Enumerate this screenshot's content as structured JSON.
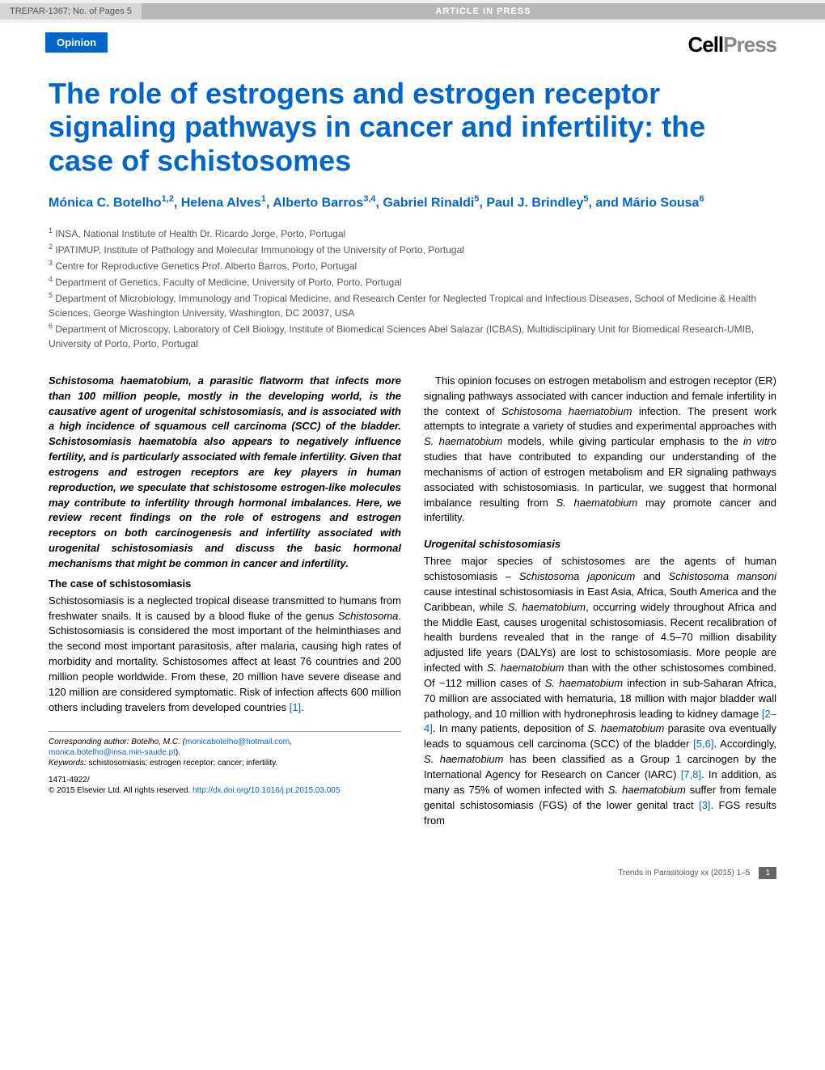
{
  "header": {
    "code": "TREPAR-1367; No. of Pages 5",
    "banner": "ARTICLE IN PRESS",
    "badge": "Opinion",
    "logo_cell": "Cell",
    "logo_press": "Press"
  },
  "title": "The role of estrogens and estrogen receptor signaling pathways in cancer and infertility: the case of schistosomes",
  "authors_html": "Mónica C. Botelho<sup>1,2</sup>, Helena Alves<sup>1</sup>, Alberto Barros<sup>3,4</sup>, Gabriel Rinaldi<sup>5</sup>, Paul J. Brindley<sup>5</sup>, and Mário Sousa<sup>6</sup>",
  "affiliations": [
    "<sup>1</sup> INSA, National Institute of Health Dr. Ricardo Jorge, Porto, Portugal",
    "<sup>2</sup> IPATIMUP, Institute of Pathology and Molecular Immunology of the University of Porto, Portugal",
    "<sup>3</sup> Centre for Reproductive Genetics Prof. Alberto Barros, Porto, Portugal",
    "<sup>4</sup> Department of Genetics, Faculty of Medicine, University of Porto, Porto, Portugal",
    "<sup>5</sup> Department of Microbiology, Immunology and Tropical Medicine, and Research Center for Neglected Tropical and Infectious Diseases, School of Medicine & Health Sciences, George Washington University, Washington, DC 20037, USA",
    "<sup>6</sup> Department of Microscopy, Laboratory of Cell Biology, Institute of Biomedical Sciences Abel Salazar (ICBAS), Multidisciplinary Unit for Biomedical Research-UMIB, University of Porto, Porto, Portugal"
  ],
  "left_col": {
    "abstract": "Schistosoma haematobium, a parasitic flatworm that infects more than 100 million people, mostly in the developing world, is the causative agent of urogenital schistosomiasis, and is associated with a high incidence of squamous cell carcinoma (SCC) of the bladder. Schistosomiasis haematobia also appears to negatively influence fertility, and is particularly associated with female infertility. Given that estrogens and estrogen receptors are key players in human reproduction, we speculate that schistosome estrogen-like molecules may contribute to infertility through hormonal imbalances. Here, we review recent findings on the role of estrogens and estrogen receptors on both carcinogenesis and infertility associated with urogenital schistosomiasis and discuss the basic hormonal mechanisms that might be common in cancer and infertility.",
    "heading1": "The case of schistosomiasis",
    "para1": "Schistosomiasis is a neglected tropical disease transmitted to humans from freshwater snails. It is caused by a blood fluke of the genus <span class=\"italic\">Schistosoma</span>. Schistosomiasis is considered the most important of the helminthiases and the second most important parasitosis, after malaria, causing high rates of morbidity and mortality. Schistosomes affect at least 76 countries and 200 million people worldwide. From these, 20 million have severe disease and 120 million are considered symptomatic. Risk of infection affects 600 million others including travelers from developed countries <span class=\"ref\">[1]</span>."
  },
  "right_col": {
    "para1": "This opinion focuses on estrogen metabolism and estrogen receptor (ER) signaling pathways associated with cancer induction and female infertility in the context of <span class=\"italic\">Schistosoma haematobium</span> infection. The present work attempts to integrate a variety of studies and experimental approaches with <span class=\"italic\">S. haematobium</span> models, while giving particular emphasis to the <span class=\"italic\">in vitro</span> studies that have contributed to expanding our understanding of the mechanisms of action of estrogen metabolism and ER signaling pathways associated with schistosomiasis. In particular, we suggest that hormonal imbalance resulting from <span class=\"italic\">S. haematobium</span> may promote cancer and infertility.",
    "heading1": "Urogenital schistosomiasis",
    "para2": "Three major species of schistosomes are the agents of human schistosomiasis – <span class=\"italic\">Schistosoma japonicum</span> and <span class=\"italic\">Schistosoma mansoni</span> cause intestinal schistosomiasis in East Asia, Africa, South America and the Caribbean, while <span class=\"italic\">S. haematobium</span>, occurring widely throughout Africa and the Middle East, causes urogenital schistosomiasis. Recent recalibration of health burdens revealed that in the range of 4.5–70 million disability adjusted life years (DALYs) are lost to schistosomiasis. More people are infected with <span class=\"italic\">S. haematobium</span> than with the other schistosomes combined. Of ~112 million cases of <span class=\"italic\">S. haematobium</span> infection in sub-Saharan Africa, 70 million are associated with hematuria, 18 million with major bladder wall pathology, and 10 million with hydronephrosis leading to kidney damage <span class=\"ref\">[2–4]</span>. In many patients, deposition of <span class=\"italic\">S. haematobium</span> parasite ova eventually leads to squamous cell carcinoma (SCC) of the bladder <span class=\"ref\">[5,6]</span>. Accordingly, <span class=\"italic\">S. haematobium</span> has been classified as a Group 1 carcinogen by the International Agency for Research on Cancer (IARC) <span class=\"ref\">[7,8]</span>. In addition, as many as 75% of women infected with <span class=\"italic\">S. haematobium</span> suffer from female genital schistosomiasis (FGS) of the lower genital tract <span class=\"ref\">[3]</span>. FGS results from"
  },
  "corresponding": {
    "line1": "Corresponding author: Botelho, M.C. (",
    "email1": "monicabotelho@hotmail.com",
    "sep": ", ",
    "email2": "monica.botelho@insa.min-saude.pt",
    "close": ").",
    "keywords_label": "Keywords:",
    "keywords": " schistosomiasis; estrogen receptor; cancer; infertility.",
    "issn": "1471-4922/",
    "copyright": "© 2015 Elsevier Ltd. All rights reserved. ",
    "doi": "http://dx.doi.org/10.1016/j.pt.2015.03.005"
  },
  "footer": {
    "journal": "Trends in Parasitology xx (2015) 1–5",
    "page": "1"
  }
}
